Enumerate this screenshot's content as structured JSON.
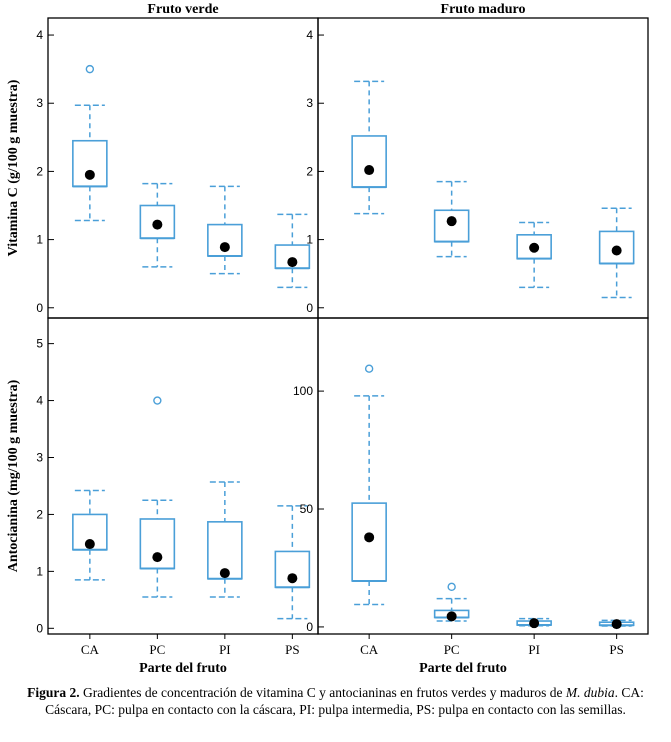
{
  "caption": {
    "label": "Figura 2.",
    "text_a": "Gradientes de concentración de vitamina C y antocianinas en frutos verdes y maduros de",
    "species": "M. dubia",
    "text_b": ". CA: Cáscara, PC: pulpa en contacto con la cáscara, PI: pulpa intermedia, PS: pulpa en contacto con las semillas."
  },
  "colors": {
    "box": "#4a9fd8",
    "mean": "#000000",
    "frame": "#000000"
  },
  "chart_data": [
    {
      "id": "vitc-verde",
      "type": "box",
      "title": "Fruto verde",
      "ylabel": "Vitamina C (g/100 g muestra)",
      "xlabel": "",
      "ylim": [
        -0.15,
        4.25
      ],
      "yticks": [
        0,
        1,
        2,
        3,
        4
      ],
      "categories": [
        "CA",
        "PC",
        "PI",
        "PS"
      ],
      "boxes": [
        {
          "category": "CA",
          "whisker_low": 1.28,
          "q1": 1.78,
          "median": 1.78,
          "q3": 2.45,
          "whisker_high": 2.97,
          "mean": 1.95,
          "outliers": [
            3.5
          ]
        },
        {
          "category": "PC",
          "whisker_low": 0.6,
          "q1": 1.02,
          "median": 1.02,
          "q3": 1.5,
          "whisker_high": 1.82,
          "mean": 1.22,
          "outliers": []
        },
        {
          "category": "PI",
          "whisker_low": 0.5,
          "q1": 0.76,
          "median": 0.76,
          "q3": 1.22,
          "whisker_high": 1.78,
          "mean": 0.89,
          "outliers": []
        },
        {
          "category": "PS",
          "whisker_low": 0.3,
          "q1": 0.58,
          "median": 0.58,
          "q3": 0.92,
          "whisker_high": 1.37,
          "mean": 0.67,
          "outliers": []
        }
      ]
    },
    {
      "id": "vitc-maduro",
      "type": "box",
      "title": "Fruto maduro",
      "ylabel": "",
      "xlabel": "",
      "ylim": [
        -0.15,
        4.25
      ],
      "yticks": [
        0,
        1,
        2,
        3,
        4
      ],
      "categories": [
        "CA",
        "PC",
        "PI",
        "PS"
      ],
      "boxes": [
        {
          "category": "CA",
          "whisker_low": 1.38,
          "q1": 1.77,
          "median": 1.77,
          "q3": 2.52,
          "whisker_high": 3.32,
          "mean": 2.02,
          "outliers": []
        },
        {
          "category": "PC",
          "whisker_low": 0.75,
          "q1": 0.97,
          "median": 0.97,
          "q3": 1.43,
          "whisker_high": 1.85,
          "mean": 1.27,
          "outliers": []
        },
        {
          "category": "PI",
          "whisker_low": 0.3,
          "q1": 0.72,
          "median": 0.72,
          "q3": 1.07,
          "whisker_high": 1.25,
          "mean": 0.88,
          "outliers": []
        },
        {
          "category": "PS",
          "whisker_low": 0.15,
          "q1": 0.65,
          "median": 0.65,
          "q3": 1.12,
          "whisker_high": 1.46,
          "mean": 0.84,
          "outliers": []
        }
      ]
    },
    {
      "id": "antoc-verde",
      "type": "box",
      "title": "",
      "ylabel": "Antocianina (mg/100 g muestra)",
      "xlabel": "Parte del fruto",
      "ylim": [
        -0.1,
        5.45
      ],
      "yticks": [
        0,
        1,
        2,
        3,
        4,
        5
      ],
      "categories": [
        "CA",
        "PC",
        "PI",
        "PS"
      ],
      "boxes": [
        {
          "category": "CA",
          "whisker_low": 0.85,
          "q1": 1.38,
          "median": 1.38,
          "q3": 2.0,
          "whisker_high": 2.42,
          "mean": 1.48,
          "outliers": []
        },
        {
          "category": "PC",
          "whisker_low": 0.55,
          "q1": 1.05,
          "median": 1.05,
          "q3": 1.92,
          "whisker_high": 2.25,
          "mean": 1.25,
          "outliers": [
            4.0
          ]
        },
        {
          "category": "PI",
          "whisker_low": 0.55,
          "q1": 0.87,
          "median": 0.87,
          "q3": 1.87,
          "whisker_high": 2.57,
          "mean": 0.97,
          "outliers": []
        },
        {
          "category": "PS",
          "whisker_low": 0.17,
          "q1": 0.72,
          "median": 0.72,
          "q3": 1.35,
          "whisker_high": 2.15,
          "mean": 0.88,
          "outliers": []
        }
      ]
    },
    {
      "id": "antoc-maduro",
      "type": "box",
      "title": "",
      "ylabel": "",
      "xlabel": "Parte del fruto",
      "ylim": [
        -3,
        131
      ],
      "yticks": [
        0,
        50,
        100
      ],
      "categories": [
        "CA",
        "PC",
        "PI",
        "PS"
      ],
      "boxes": [
        {
          "category": "CA",
          "whisker_low": 9.5,
          "q1": 19.5,
          "median": 19.5,
          "q3": 52.5,
          "whisker_high": 98,
          "mean": 38,
          "outliers": [
            109.5
          ]
        },
        {
          "category": "PC",
          "whisker_low": 2.5,
          "q1": 4,
          "median": 4,
          "q3": 7,
          "whisker_high": 12,
          "mean": 4.5,
          "outliers": [
            17
          ]
        },
        {
          "category": "PI",
          "whisker_low": 0.5,
          "q1": 0.8,
          "median": 0.8,
          "q3": 2.5,
          "whisker_high": 3.5,
          "mean": 1.6,
          "outliers": []
        },
        {
          "category": "PS",
          "whisker_low": 0.4,
          "q1": 0.7,
          "median": 0.7,
          "q3": 2.0,
          "whisker_high": 2.8,
          "mean": 1.2,
          "outliers": []
        }
      ]
    }
  ]
}
